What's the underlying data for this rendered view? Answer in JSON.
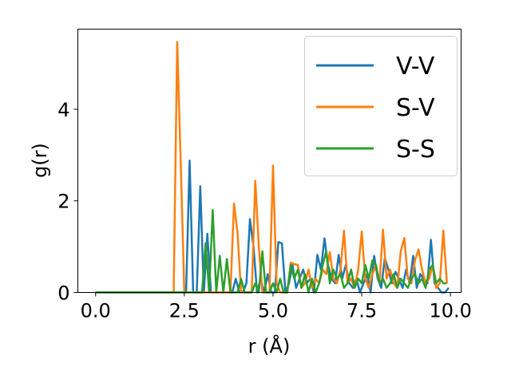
{
  "chart_data": {
    "type": "line",
    "xlabel": "r (Å)",
    "ylabel": "g(r)",
    "xlim": [
      -0.5,
      10.3
    ],
    "ylim": [
      0,
      5.75
    ],
    "xticks": [
      0.0,
      2.5,
      5.0,
      7.5,
      10.0
    ],
    "xtick_labels": [
      "0.0",
      "2.5",
      "5.0",
      "7.5",
      "10.0"
    ],
    "yticks": [
      0,
      2,
      4
    ],
    "ytick_labels": [
      "0",
      "2",
      "4"
    ],
    "grid": false,
    "legend_position": "top-right",
    "series": [
      {
        "name": "V-V",
        "color": "#1f77b4",
        "x": [
          0,
          2.5,
          2.55,
          2.65,
          2.75,
          2.85,
          2.95,
          3.05,
          3.15,
          3.25,
          3.35,
          3.45,
          3.55,
          3.65,
          3.75,
          3.85,
          3.95,
          4.05,
          4.15,
          4.25,
          4.35,
          4.45,
          4.55,
          4.65,
          4.75,
          4.85,
          4.95,
          5.05,
          5.15,
          5.25,
          5.35,
          5.45,
          5.55,
          5.65,
          5.75,
          5.85,
          5.95,
          6.05,
          6.15,
          6.25,
          6.35,
          6.45,
          6.55,
          6.65,
          6.75,
          6.85,
          6.95,
          7.05,
          7.15,
          7.25,
          7.35,
          7.45,
          7.55,
          7.65,
          7.75,
          7.85,
          7.95,
          8.05,
          8.15,
          8.25,
          8.35,
          8.45,
          8.55,
          8.65,
          8.75,
          8.85,
          8.95,
          9.05,
          9.15,
          9.25,
          9.35,
          9.45,
          9.55,
          9.65,
          9.75,
          9.85,
          9.95
        ],
        "y": [
          0,
          0,
          0,
          2.88,
          0,
          0,
          2.32,
          0,
          1.28,
          0,
          0,
          0,
          0,
          0,
          0,
          0,
          0.3,
          0,
          0,
          0.2,
          1.6,
          1.0,
          0,
          0.3,
          0,
          0.4,
          0,
          0,
          1.1,
          1.07,
          0,
          0.2,
          0.6,
          0.1,
          0.3,
          0.5,
          0.2,
          0.3,
          0,
          0.82,
          0.5,
          1.18,
          0.6,
          0.3,
          0.2,
          0.82,
          0.3,
          0.6,
          0.2,
          0.1,
          0.3,
          0,
          0.2,
          0.4,
          0,
          0.8,
          0.3,
          0.1,
          0.75,
          0.5,
          0.2,
          0.45,
          0.3,
          0.1,
          0.5,
          0.2,
          0.8,
          0.1,
          0.4,
          0.3,
          0.2,
          1.15,
          0.2,
          0.1,
          0,
          0,
          0.1
        ]
      },
      {
        "name": "S-V",
        "color": "#ff7f0e",
        "x": [
          0,
          2.2,
          2.3,
          2.4,
          2.5,
          2.6,
          2.7,
          2.8,
          2.9,
          3.0,
          3.1,
          3.2,
          3.3,
          3.4,
          3.5,
          3.6,
          3.7,
          3.8,
          3.9,
          4.0,
          4.1,
          4.2,
          4.3,
          4.4,
          4.5,
          4.6,
          4.7,
          4.8,
          4.9,
          5.0,
          5.1,
          5.2,
          5.3,
          5.4,
          5.5,
          5.6,
          5.7,
          5.8,
          5.9,
          6.0,
          6.1,
          6.2,
          6.3,
          6.4,
          6.5,
          6.6,
          6.7,
          6.8,
          6.9,
          7.0,
          7.1,
          7.2,
          7.3,
          7.4,
          7.5,
          7.6,
          7.7,
          7.8,
          7.9,
          8.0,
          8.1,
          8.2,
          8.3,
          8.4,
          8.5,
          8.6,
          8.7,
          8.8,
          8.9,
          9.0,
          9.1,
          9.2,
          9.3,
          9.4,
          9.5,
          9.6,
          9.7,
          9.8,
          9.9
        ],
        "y": [
          0,
          0,
          5.47,
          2.8,
          0,
          0,
          0,
          0,
          0,
          0,
          0,
          0,
          0,
          0,
          0,
          0,
          0,
          0,
          1.94,
          1.3,
          0,
          0,
          0,
          0,
          2.44,
          1.0,
          0,
          0,
          0,
          2.77,
          0.2,
          0,
          0,
          0,
          0.65,
          0.62,
          0.6,
          0.1,
          0.2,
          0.5,
          0.1,
          0.3,
          0.2,
          0.5,
          0.4,
          0.88,
          0.3,
          0.2,
          0.5,
          1.35,
          0.2,
          0.3,
          0.1,
          0.5,
          1.33,
          0.3,
          0.1,
          0.4,
          0.6,
          0.2,
          1.37,
          0.3,
          0.5,
          0.2,
          0.1,
          0.9,
          1.19,
          0.3,
          0.2,
          0.7,
          0.94,
          0.5,
          0.2,
          0.3,
          0.6,
          0.1,
          0.2,
          1.35,
          0.2
        ]
      },
      {
        "name": "S-S",
        "color": "#2ca02c",
        "x": [
          0,
          2.9,
          3.0,
          3.1,
          3.2,
          3.3,
          3.4,
          3.5,
          3.6,
          3.7,
          3.8,
          3.9,
          4.0,
          4.1,
          4.2,
          4.3,
          4.4,
          4.5,
          4.6,
          4.7,
          4.8,
          4.9,
          5.0,
          5.1,
          5.2,
          5.3,
          5.4,
          5.5,
          5.6,
          5.7,
          5.8,
          5.9,
          6.0,
          6.1,
          6.2,
          6.3,
          6.4,
          6.5,
          6.6,
          6.7,
          6.8,
          6.9,
          7.0,
          7.1,
          7.2,
          7.3,
          7.4,
          7.5,
          7.6,
          7.7,
          7.8,
          7.9,
          8.0,
          8.1,
          8.2,
          8.3,
          8.4,
          8.5,
          8.6,
          8.7,
          8.8,
          8.9,
          9.0,
          9.1,
          9.2,
          9.3,
          9.4,
          9.5,
          9.6,
          9.7,
          9.8,
          9.9
        ],
        "y": [
          0,
          0,
          0,
          1.08,
          0,
          1.8,
          0,
          0.8,
          0,
          0.73,
          0,
          0,
          0,
          0.3,
          0,
          0,
          0,
          0.2,
          0,
          0.9,
          0,
          0,
          0.2,
          0,
          0.3,
          0,
          0,
          0.6,
          0.3,
          0.5,
          0.1,
          0.4,
          0,
          0.3,
          0,
          0.2,
          0.6,
          0.9,
          0.2,
          0.5,
          0.3,
          0.4,
          0.1,
          0.2,
          0.5,
          0.1,
          0.3,
          0.2,
          0.6,
          0.3,
          0.7,
          0.6,
          0.2,
          0.3,
          0.1,
          0.2,
          0.4,
          0.1,
          0.3,
          0.2,
          0.1,
          0.3,
          0.4,
          0.2,
          0.3,
          0.1,
          0.5,
          0.6,
          0.2,
          0.3,
          0.2,
          0.2
        ]
      }
    ]
  }
}
